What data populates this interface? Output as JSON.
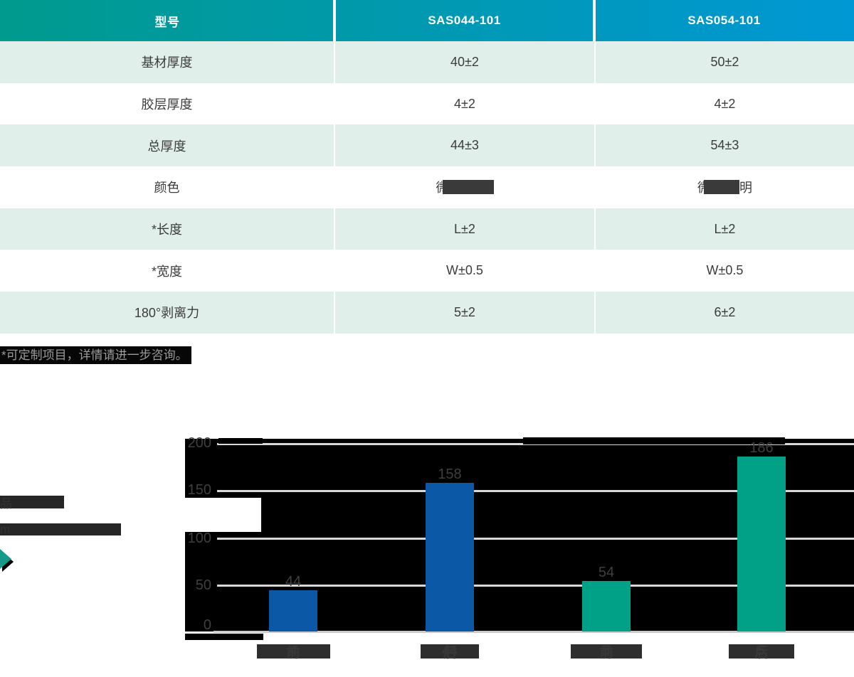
{
  "table": {
    "headers": [
      "型号",
      "SAS044-101",
      "SAS054-101"
    ],
    "header_gradient": [
      "#009A8E",
      "#0098D4"
    ],
    "row_stripe_color": "#E1EFEB",
    "rows": [
      {
        "label": "基材厚度",
        "v1": "40±2",
        "v2": "50±2"
      },
      {
        "label": "胶层厚度",
        "v1": "4±2",
        "v2": "4±2"
      },
      {
        "label": "总厚度",
        "v1": "44±3",
        "v2": "54±3"
      },
      {
        "label": "颜色",
        "v1": "微透明",
        "v2": "微透明",
        "values_obscured": true
      },
      {
        "label": "*长度",
        "v1": "L±2",
        "v2": "L±2"
      },
      {
        "label": "*宽度",
        "v1": "W±0.5",
        "v2": "W±0.5"
      },
      {
        "label": "180°剥离力",
        "v1": "5±2",
        "v2": "6±2"
      }
    ],
    "color_row_fragments": {
      "prefix": "微",
      "suffix": "明"
    }
  },
  "footnote": "*可定制项目，详情请进一步咨询。",
  "legend": {
    "line1_visible_suffix": "品",
    "line2_visible_suffix": "m",
    "marker_color": "#159A89"
  },
  "chart_data": {
    "type": "bar",
    "title": "",
    "title_obscured_by_black_bar": true,
    "categories_visible": [
      {
        "prefix": "4",
        "suffix": "前"
      },
      {
        "prefix": "44",
        "suffix": "后"
      },
      {
        "prefix": "5",
        "suffix": "前"
      },
      {
        "prefix": "5",
        "suffix": "后"
      }
    ],
    "values": [
      44,
      158,
      54,
      186
    ],
    "bar_colors": [
      "#0B58A6",
      "#0B58A6",
      "#00A186",
      "#00A186"
    ],
    "yticks": [
      200,
      150,
      100,
      50,
      0
    ],
    "ylim": [
      0,
      200
    ],
    "grid": true,
    "plot_background": "#000000",
    "gridline_color": "#D8D8D8"
  }
}
